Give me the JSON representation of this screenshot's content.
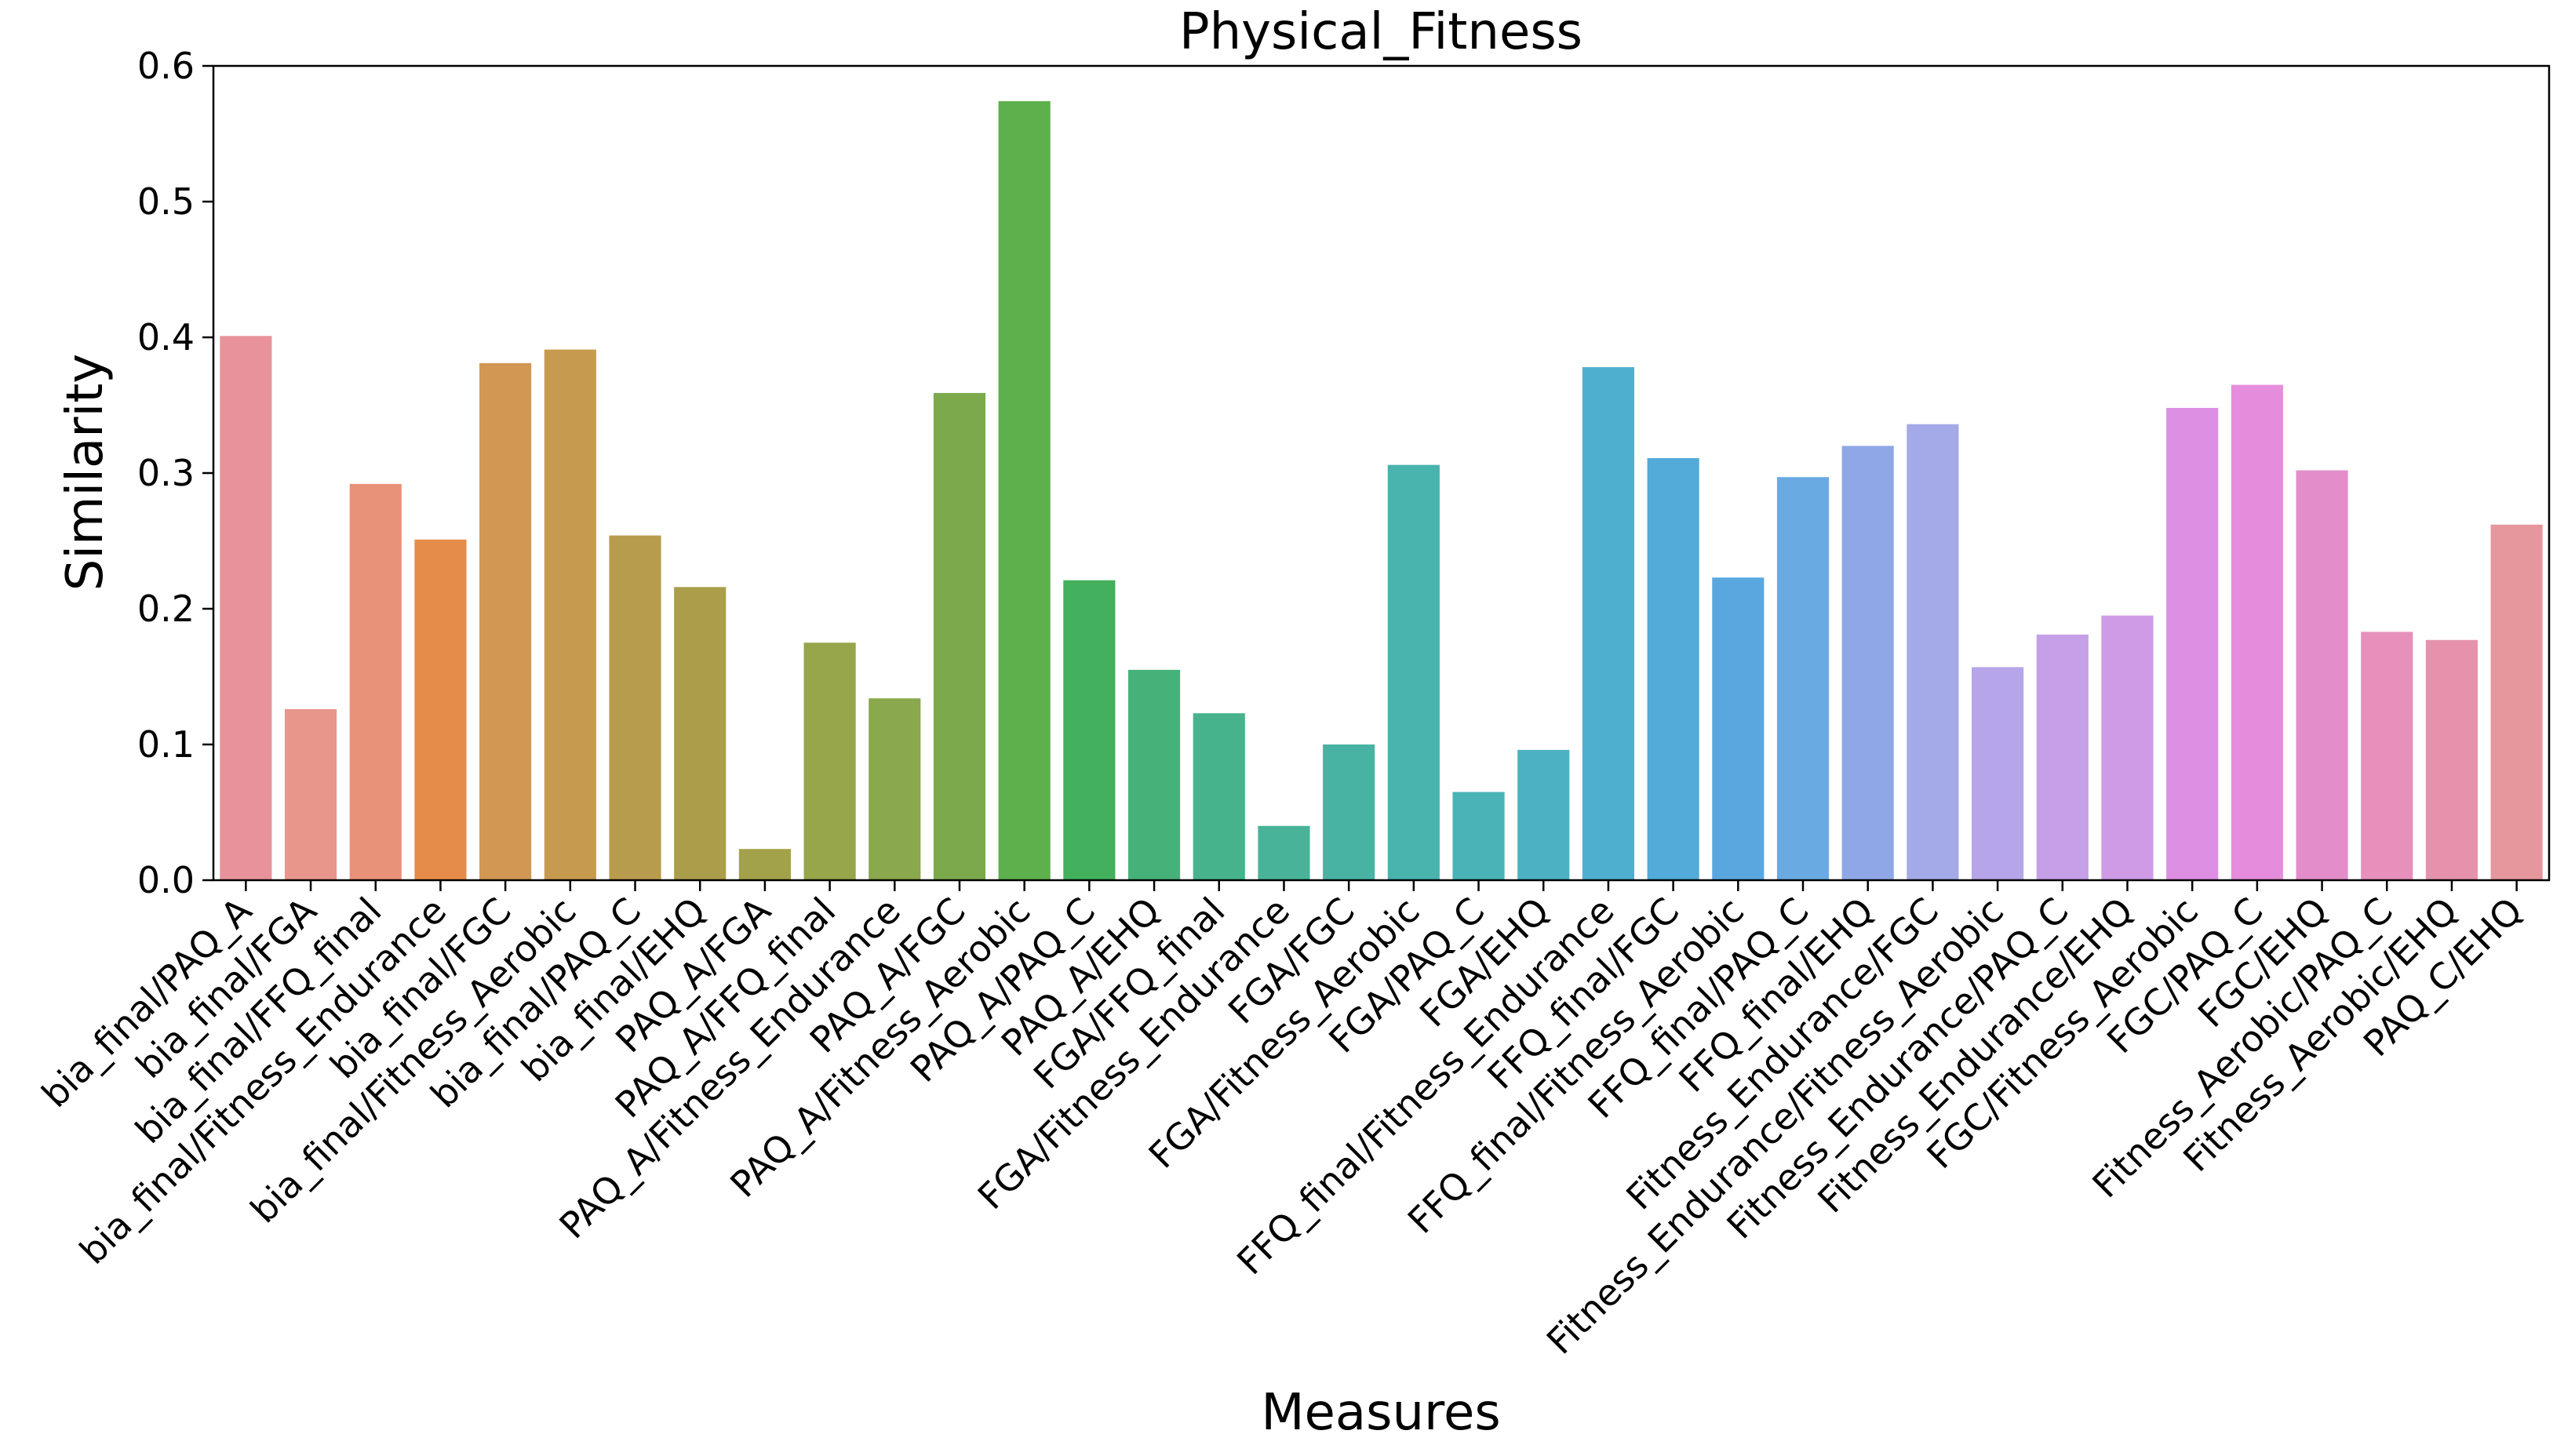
{
  "chart_data": {
    "type": "bar",
    "title": "Physical_Fitness",
    "xlabel": "Measures",
    "ylabel": "Similarity",
    "ylim": [
      0,
      0.6
    ],
    "yticks": [
      "0.0",
      "0.1",
      "0.2",
      "0.3",
      "0.4",
      "0.5",
      "0.6"
    ],
    "grid": false,
    "legend": "none",
    "categories": [
      "bia_final/PAQ_A",
      "bia_final/FGA",
      "bia_final/FFQ_final",
      "bia_final/Fitness_Endurance",
      "bia_final/FGC",
      "bia_final/Fitness_Aerobic",
      "bia_final/PAQ_C",
      "bia_final/EHQ",
      "PAQ_A/FGA",
      "PAQ_A/FFQ_final",
      "PAQ_A/Fitness_Endurance",
      "PAQ_A/FGC",
      "PAQ_A/Fitness_Aerobic",
      "PAQ_A/PAQ_C",
      "PAQ_A/EHQ",
      "FGA/FFQ_final",
      "FGA/Fitness_Endurance",
      "FGA/FGC",
      "FGA/Fitness_Aerobic",
      "FGA/PAQ_C",
      "FGA/EHQ",
      "FFQ_final/Fitness_Endurance",
      "FFQ_final/FGC",
      "FFQ_final/Fitness_Aerobic",
      "FFQ_final/PAQ_C",
      "FFQ_final/EHQ",
      "Fitness_Endurance/FGC",
      "Fitness_Endurance/Fitness_Aerobic",
      "Fitness_Endurance/PAQ_C",
      "Fitness_Endurance/EHQ",
      "FGC/Fitness_Aerobic",
      "FGC/PAQ_C",
      "FGC/EHQ",
      "Fitness_Aerobic/PAQ_C",
      "Fitness_Aerobic/EHQ",
      "PAQ_C/EHQ"
    ],
    "values": [
      0.401,
      0.126,
      0.292,
      0.251,
      0.381,
      0.391,
      0.254,
      0.216,
      0.023,
      0.175,
      0.134,
      0.359,
      0.574,
      0.221,
      0.155,
      0.123,
      0.04,
      0.1,
      0.306,
      0.065,
      0.096,
      0.378,
      0.311,
      0.223,
      0.297,
      0.32,
      0.336,
      0.157,
      0.181,
      0.195,
      0.348,
      0.365,
      0.302,
      0.183,
      0.177,
      0.262
    ],
    "colors": [
      "#e8939c",
      "#e8968b",
      "#e89279",
      "#e68c4a",
      "#d19753",
      "#c79b4f",
      "#b89c4d",
      "#ab9e4a",
      "#a2a24a",
      "#97a54b",
      "#8aa84c",
      "#7ca94c",
      "#5db04b",
      "#43b05d",
      "#45b279",
      "#46b38c",
      "#48b398",
      "#48b3a3",
      "#49b3ad",
      "#4ab3b8",
      "#4cb2c3",
      "#4eb0ce",
      "#52abd8",
      "#5aa7e0",
      "#6aaae3",
      "#8fa7e6",
      "#a4a9e7",
      "#b6a5e8",
      "#c59fe7",
      "#cf9be6",
      "#dd8fe4",
      "#e58ddc",
      "#e38ecb",
      "#e690bb",
      "#e692ad",
      "#e6969d"
    ]
  }
}
